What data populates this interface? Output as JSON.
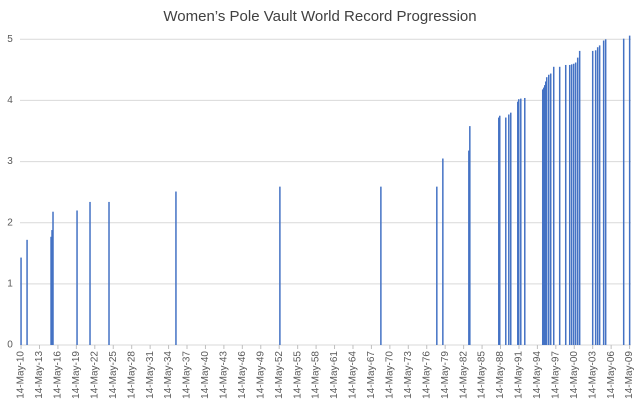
{
  "chart_data": {
    "type": "bar",
    "title": "Women’s Pole Vault World Record Progression",
    "x": [
      1910.37,
      1911.35,
      1915.25,
      1915.41,
      1915.57,
      1919.48,
      1921.59,
      1924.68,
      1935.57,
      1952.48,
      1968.91,
      1978.01,
      1978.99,
      1983.22,
      1983.38,
      1988.09,
      1988.25,
      1989.23,
      1989.72,
      1990.04,
      1991.18,
      1991.34,
      1991.67,
      1992.32,
      1995.24,
      1995.41,
      1995.57,
      1995.73,
      1995.89,
      1996.22,
      1996.54,
      1997.03,
      1998.0,
      1998.98,
      1999.63,
      1999.95,
      2000.28,
      2000.6,
      2000.93,
      2001.25,
      2003.37,
      2003.85,
      2004.18,
      2004.5,
      2005.15,
      2005.48,
      2008.41,
      2009.38
    ],
    "values": [
      1.43,
      1.72,
      1.77,
      1.88,
      2.18,
      2.2,
      2.34,
      2.34,
      2.51,
      2.59,
      2.59,
      2.59,
      3.05,
      3.18,
      3.58,
      3.72,
      3.75,
      3.72,
      3.77,
      3.8,
      3.98,
      4.02,
      4.03,
      4.04,
      4.18,
      4.21,
      4.25,
      4.31,
      4.38,
      4.42,
      4.44,
      4.55,
      4.55,
      4.58,
      4.58,
      4.59,
      4.6,
      4.62,
      4.7,
      4.81,
      4.81,
      4.82,
      4.87,
      4.9,
      4.98,
      5.0,
      5.01,
      5.06
    ],
    "color": "#4472c4",
    "xlim": [
      1910.2,
      2009.6
    ],
    "xticks": [
      {
        "value": 1910.37,
        "label": "14-May-10"
      },
      {
        "value": 1913.37,
        "label": "14-May-13"
      },
      {
        "value": 1916.37,
        "label": "14-May-16"
      },
      {
        "value": 1919.37,
        "label": "14-May-19"
      },
      {
        "value": 1922.37,
        "label": "14-May-22"
      },
      {
        "value": 1925.37,
        "label": "14-May-25"
      },
      {
        "value": 1928.37,
        "label": "14-May-28"
      },
      {
        "value": 1931.37,
        "label": "14-May-31"
      },
      {
        "value": 1934.37,
        "label": "14-May-34"
      },
      {
        "value": 1937.37,
        "label": "14-May-37"
      },
      {
        "value": 1940.37,
        "label": "14-May-40"
      },
      {
        "value": 1943.37,
        "label": "14-May-43"
      },
      {
        "value": 1946.37,
        "label": "14-May-46"
      },
      {
        "value": 1949.37,
        "label": "14-May-49"
      },
      {
        "value": 1952.37,
        "label": "14-May-52"
      },
      {
        "value": 1955.37,
        "label": "14-May-55"
      },
      {
        "value": 1958.37,
        "label": "14-May-58"
      },
      {
        "value": 1961.37,
        "label": "14-May-61"
      },
      {
        "value": 1964.37,
        "label": "14-May-64"
      },
      {
        "value": 1967.37,
        "label": "14-May-67"
      },
      {
        "value": 1970.37,
        "label": "14-May-70"
      },
      {
        "value": 1973.37,
        "label": "14-May-73"
      },
      {
        "value": 1976.37,
        "label": "14-May-76"
      },
      {
        "value": 1979.37,
        "label": "14-May-79"
      },
      {
        "value": 1982.37,
        "label": "14-May-82"
      },
      {
        "value": 1985.37,
        "label": "14-May-85"
      },
      {
        "value": 1988.37,
        "label": "14-May-88"
      },
      {
        "value": 1991.37,
        "label": "14-May-91"
      },
      {
        "value": 1994.37,
        "label": "14-May-94"
      },
      {
        "value": 1997.37,
        "label": "14-May-97"
      },
      {
        "value": 2000.37,
        "label": "14-May-00"
      },
      {
        "value": 2003.37,
        "label": "14-May-03"
      },
      {
        "value": 2006.37,
        "label": "14-May-06"
      },
      {
        "value": 2009.37,
        "label": "14-May-09"
      }
    ],
    "ylim": [
      0,
      5.25
    ],
    "yticks": [
      0,
      1,
      2,
      3,
      4,
      5
    ],
    "grid": true
  }
}
